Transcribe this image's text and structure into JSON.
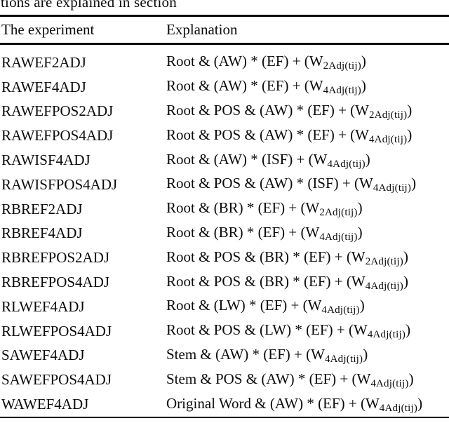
{
  "colors": {
    "text": "#0b0b0b",
    "background": "#ffffff",
    "rule": "#0b0b0b"
  },
  "caption": "tions are explained in section",
  "table": {
    "headers": {
      "experiment": "The experiment",
      "explanation": "Explanation"
    },
    "rows": [
      {
        "name": "RAWEF2ADJ",
        "pre": "Root & (AW) * (EF) + (W",
        "sub": "2Adj(tij)",
        "post": ")"
      },
      {
        "name": "RAWEF4ADJ",
        "pre": "Root & (AW) * (EF) + (W",
        "sub": "4Adj(tij)",
        "post": ")"
      },
      {
        "name": "RAWEFPOS2ADJ",
        "pre": "Root & POS & (AW) * (EF) + (W",
        "sub": "2Adj(tij)",
        "post": ")"
      },
      {
        "name": "RAWEFPOS4ADJ",
        "pre": "Root & POS & (AW) * (EF) + (W",
        "sub": "4Adj(tij)",
        "post": ")"
      },
      {
        "name": "RAWISF4ADJ",
        "pre": "Root & (AW) * (ISF) + (W",
        "sub": "4Adj(tij)",
        "post": ")"
      },
      {
        "name": "RAWISFPOS4ADJ",
        "pre": "Root & POS & (AW) * (ISF) + (W",
        "sub": "4Adj(tij)",
        "post": ")"
      },
      {
        "name": "RBREF2ADJ",
        "pre": "Root & (BR) * (EF) + (W",
        "sub": "2Adj(tij)",
        "post": ")"
      },
      {
        "name": "RBREF4ADJ",
        "pre": "Root & (BR) * (EF) + (W",
        "sub": "4Adj(tij)",
        "post": ")"
      },
      {
        "name": "RBREFPOS2ADJ",
        "pre": "Root & POS & (BR) * (EF) + (W",
        "sub": "2Adj(tij)",
        "post": ")"
      },
      {
        "name": "RBREFPOS4ADJ",
        "pre": "Root & POS & (BR) * (EF) + (W",
        "sub": "4Adj(tij)",
        "post": ")"
      },
      {
        "name": "RLWEF4ADJ",
        "pre": "Root & (LW) * (EF) + (W",
        "sub": "4Adj(tij)",
        "post": ")"
      },
      {
        "name": "RLWEFPOS4ADJ",
        "pre": "Root & POS & (LW) * (EF) + (W",
        "sub": "4Adj(tij)",
        "post": ")"
      },
      {
        "name": "SAWEF4ADJ",
        "pre": "Stem & (AW) * (EF) + (W",
        "sub": "4Adj(tij)",
        "post": ")"
      },
      {
        "name": "SAWEFPOS4ADJ",
        "pre": "Stem & POS & (AW) * (EF) + (W",
        "sub": "4Adj(tij)",
        "post": ")"
      },
      {
        "name": "WAWEF4ADJ",
        "pre": "Original Word & (AW) * (EF) + (W",
        "sub": "4Adj(tij)",
        "post": ")"
      }
    ]
  }
}
